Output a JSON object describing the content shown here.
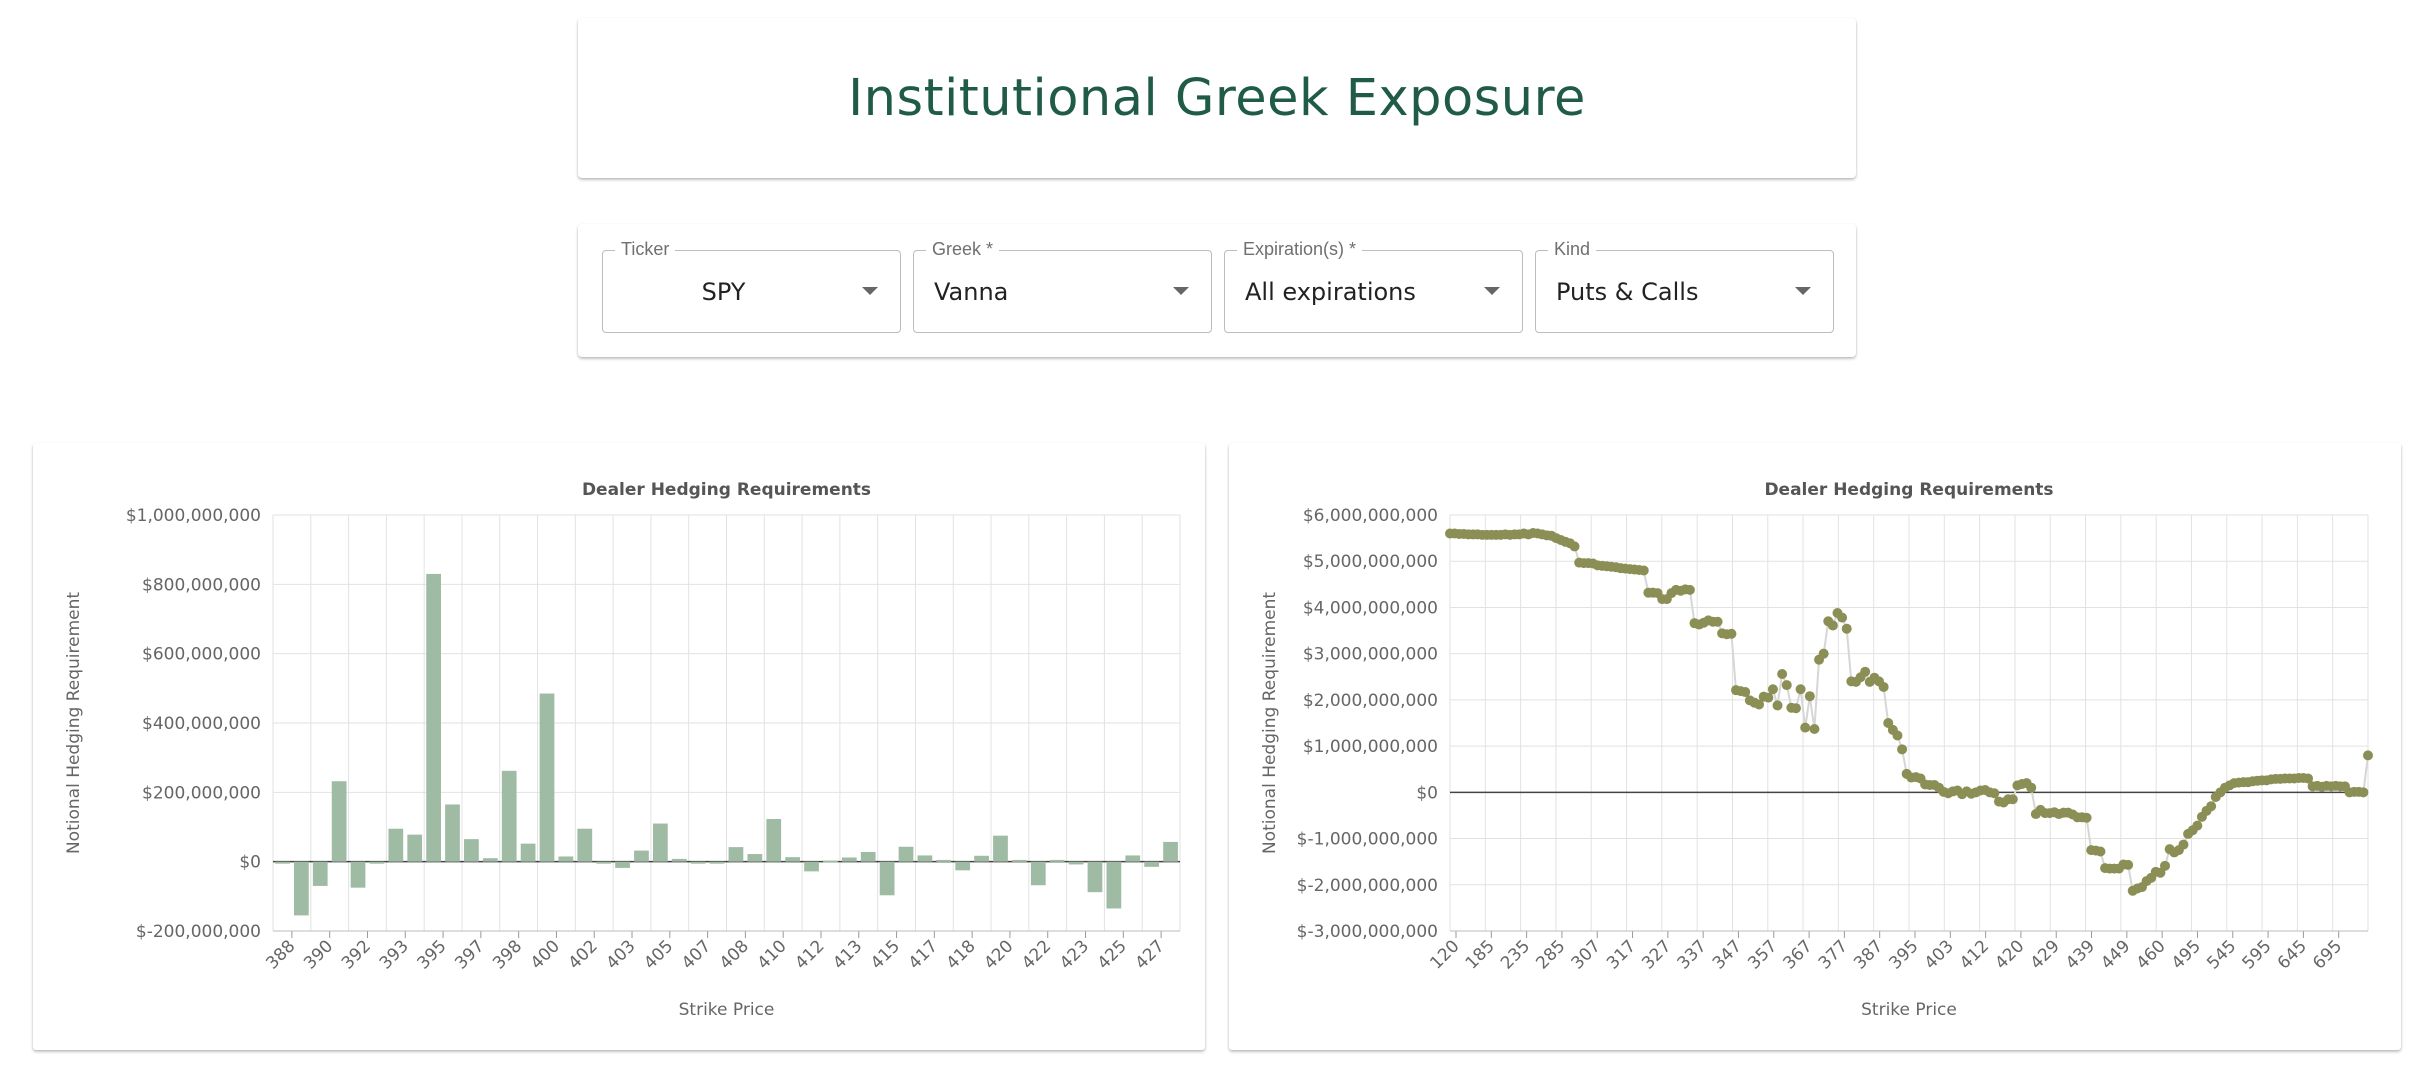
{
  "page": {
    "title": "Institutional Greek Exposure"
  },
  "controls": {
    "ticker": {
      "label": "Ticker",
      "value": "SPY"
    },
    "greek": {
      "label": "Greek *",
      "value": "Vanna"
    },
    "expirations": {
      "label": "Expiration(s) *",
      "value": "All expirations"
    },
    "kind": {
      "label": "Kind",
      "value": "Puts & Calls"
    }
  },
  "charts": [
    {
      "type": "bar",
      "title": "Dealer Hedging Requirements",
      "xlabel": "Strike Price",
      "ylabel": "Notional Hedging Requirement",
      "ylim": [
        -200000000,
        1000000000
      ],
      "yticks": [
        "$1,000,000,000",
        "$800,000,000",
        "$600,000,000",
        "$400,000,000",
        "$200,000,000",
        "$0",
        "$-200,000,000"
      ],
      "xticks": [
        "388",
        "390",
        "392",
        "393",
        "395",
        "397",
        "398",
        "400",
        "402",
        "403",
        "405",
        "407",
        "408",
        "410",
        "412",
        "413",
        "415",
        "417",
        "418",
        "420",
        "422",
        "423",
        "425",
        "427"
      ],
      "color": "#9fbba4",
      "grid": true,
      "values": [
        -5000000,
        -155000000,
        -70000000,
        232000000,
        -75000000,
        -3000000,
        95000000,
        78000000,
        830000000,
        165000000,
        65000000,
        10000000,
        262000000,
        52000000,
        485000000,
        15000000,
        95000000,
        -2000000,
        -18000000,
        32000000,
        110000000,
        8000000,
        -5000000,
        -3000000,
        42000000,
        22000000,
        123000000,
        13000000,
        -28000000,
        3000000,
        12000000,
        28000000,
        -97000000,
        43000000,
        18000000,
        5000000,
        -25000000,
        17000000,
        75000000,
        5000000,
        -68000000,
        5000000,
        -8000000,
        -88000000,
        -135000000,
        18000000,
        -15000000,
        57000000
      ]
    },
    {
      "type": "line",
      "title": "Dealer Hedging Requirements",
      "xlabel": "Strike Price",
      "ylabel": "Notional Hedging Requirement",
      "ylim": [
        -3000000000,
        6000000000
      ],
      "yticks": [
        "$6,000,000,000",
        "$5,000,000,000",
        "$4,000,000,000",
        "$3,000,000,000",
        "$2,000,000,000",
        "$1,000,000,000",
        "$0",
        "$-1,000,000,000",
        "$-2,000,000,000",
        "$-3,000,000,000"
      ],
      "xticks": [
        "120",
        "185",
        "235",
        "285",
        "307",
        "317",
        "327",
        "337",
        "347",
        "357",
        "367",
        "377",
        "387",
        "395",
        "403",
        "412",
        "420",
        "429",
        "439",
        "449",
        "460",
        "495",
        "545",
        "595",
        "645",
        "695"
      ],
      "color": "#8b8f55",
      "grid": true,
      "values": [
        5600000000,
        5600000000,
        5590000000,
        5590000000,
        5580000000,
        5580000000,
        5580000000,
        5570000000,
        5570000000,
        5570000000,
        5570000000,
        5570000000,
        5580000000,
        5570000000,
        5580000000,
        5580000000,
        5600000000,
        5580000000,
        5610000000,
        5600000000,
        5580000000,
        5560000000,
        5550000000,
        5500000000,
        5460000000,
        5420000000,
        5390000000,
        5320000000,
        4970000000,
        4960000000,
        4960000000,
        4950000000,
        4910000000,
        4900000000,
        4890000000,
        4880000000,
        4870000000,
        4850000000,
        4840000000,
        4830000000,
        4820000000,
        4810000000,
        4800000000,
        4320000000,
        4320000000,
        4310000000,
        4180000000,
        4180000000,
        4310000000,
        4380000000,
        4360000000,
        4390000000,
        4380000000,
        3660000000,
        3630000000,
        3670000000,
        3720000000,
        3690000000,
        3690000000,
        3440000000,
        3420000000,
        3430000000,
        2210000000,
        2190000000,
        2170000000,
        1990000000,
        1940000000,
        1900000000,
        2070000000,
        2050000000,
        2230000000,
        1880000000,
        2560000000,
        2320000000,
        1830000000,
        1820000000,
        2230000000,
        1400000000,
        2080000000,
        1370000000,
        2870000000,
        3000000000,
        3700000000,
        3610000000,
        3880000000,
        3780000000,
        3540000000,
        2400000000,
        2390000000,
        2490000000,
        2610000000,
        2390000000,
        2480000000,
        2400000000,
        2280000000,
        1500000000,
        1350000000,
        1230000000,
        930000000,
        400000000,
        320000000,
        330000000,
        300000000,
        170000000,
        160000000,
        160000000,
        100000000,
        10000000,
        -20000000,
        20000000,
        40000000,
        -40000000,
        20000000,
        -30000000,
        0,
        40000000,
        50000000,
        0,
        -20000000,
        -200000000,
        -220000000,
        -150000000,
        -150000000,
        150000000,
        180000000,
        200000000,
        100000000,
        -470000000,
        -380000000,
        -450000000,
        -450000000,
        -430000000,
        -470000000,
        -440000000,
        -440000000,
        -480000000,
        -540000000,
        -540000000,
        -550000000,
        -1250000000,
        -1260000000,
        -1280000000,
        -1640000000,
        -1650000000,
        -1650000000,
        -1650000000,
        -1560000000,
        -1570000000,
        -2130000000,
        -2080000000,
        -2050000000,
        -1920000000,
        -1850000000,
        -1720000000,
        -1740000000,
        -1590000000,
        -1230000000,
        -1300000000,
        -1250000000,
        -1130000000,
        -900000000,
        -820000000,
        -720000000,
        -530000000,
        -400000000,
        -300000000,
        -100000000,
        0,
        100000000,
        150000000,
        200000000,
        210000000,
        220000000,
        220000000,
        240000000,
        250000000,
        260000000,
        260000000,
        280000000,
        290000000,
        290000000,
        300000000,
        300000000,
        300000000,
        310000000,
        310000000,
        300000000,
        130000000,
        140000000,
        120000000,
        140000000,
        130000000,
        140000000,
        130000000,
        130000000,
        0,
        10000000,
        10000000,
        0,
        800000000
      ]
    }
  ]
}
